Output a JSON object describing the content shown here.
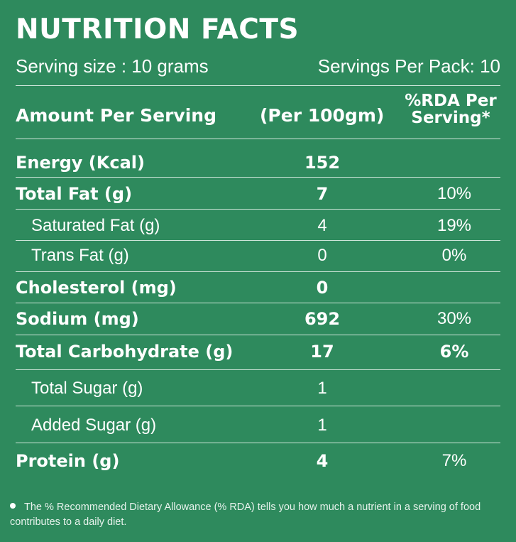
{
  "title": "NUTRITION FACTS",
  "serving_size": "Serving size : 10 grams",
  "servings_per_pack": "Servings Per Pack: 10",
  "header": {
    "amount": "Amount Per Serving",
    "per": "(Per 100gm)",
    "rda_line1": "%RDA Per",
    "rda_line2": "Serving*"
  },
  "rows": [
    {
      "name": "Energy (Kcal)",
      "value": "152",
      "rda": ""
    },
    {
      "name": "Total Fat (g)",
      "value": "7",
      "rda": "10%"
    },
    {
      "name": "Saturated Fat (g)",
      "value": "4",
      "rda": "19%"
    },
    {
      "name": "Trans Fat (g)",
      "value": "0",
      "rda": "0%"
    },
    {
      "name": "Cholesterol (mg)",
      "value": "0",
      "rda": ""
    },
    {
      "name": "Sodium  (mg)",
      "value": "692",
      "rda": "30%"
    },
    {
      "name": "Total Carbohydrate (g)",
      "value": "17",
      "rda": "6%"
    },
    {
      "name": "Total Sugar (g)",
      "value": "1",
      "rda": ""
    },
    {
      "name": "Added Sugar (g)",
      "value": "1",
      "rda": ""
    },
    {
      "name": "Protein (g)",
      "value": "4",
      "rda": "7%"
    }
  ],
  "footnote": "The % Recommended Dietary Allowance (% RDA) tells you how much a nutrient in a serving of food contributes to a daily diet.",
  "colors": {
    "background": "#2e8a5d",
    "text": "#ffffff",
    "rule": "#cfe6da"
  }
}
